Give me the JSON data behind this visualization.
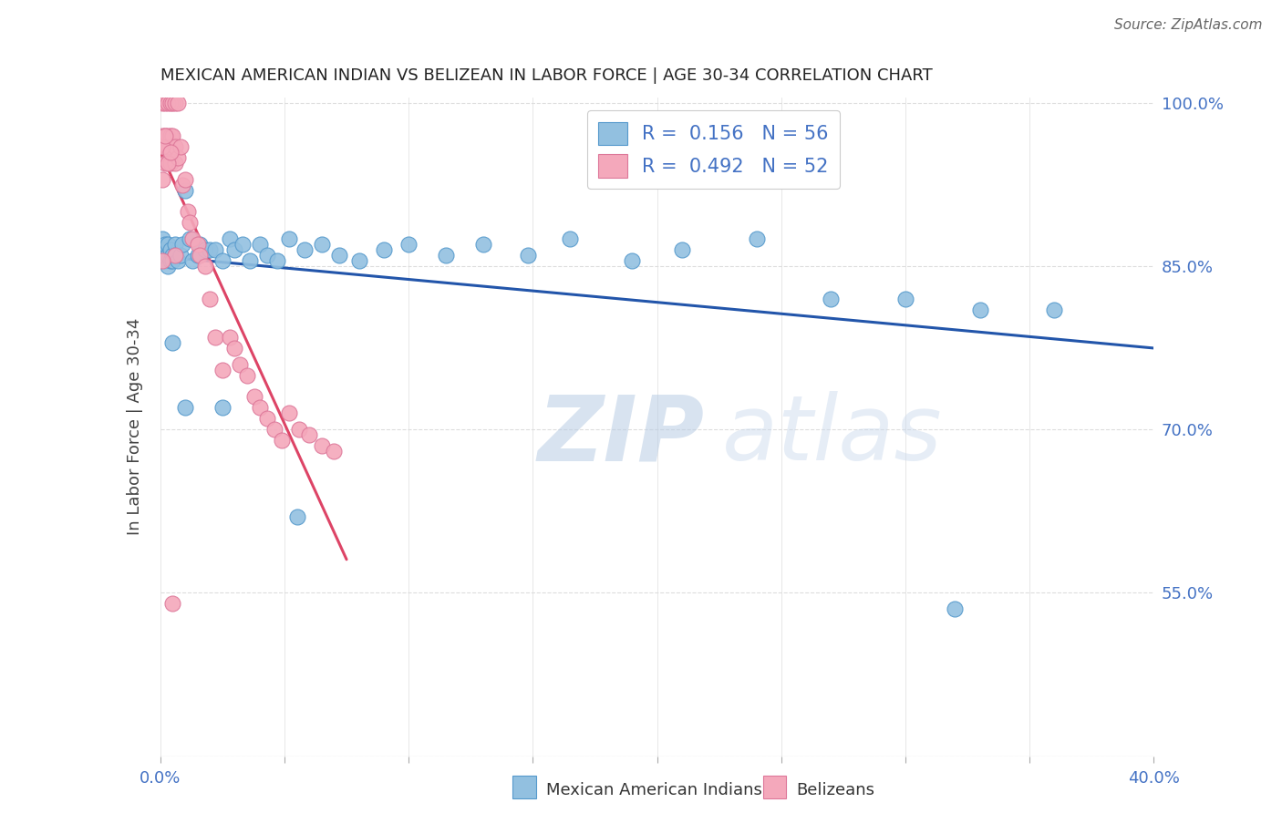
{
  "title": "MEXICAN AMERICAN INDIAN VS BELIZEAN IN LABOR FORCE | AGE 30-34 CORRELATION CHART",
  "source": "Source: ZipAtlas.com",
  "ylabel": "In Labor Force | Age 30-34",
  "xlim": [
    0.0,
    0.4
  ],
  "ylim": [
    0.4,
    1.005
  ],
  "xticks": [
    0.0,
    0.05,
    0.1,
    0.15,
    0.2,
    0.25,
    0.3,
    0.35,
    0.4
  ],
  "yticks": [
    0.4,
    0.55,
    0.7,
    0.85,
    1.0
  ],
  "legend_blue_label": "R =  0.156   N = 56",
  "legend_pink_label": "R =  0.492   N = 52",
  "blue_color": "#92c0e0",
  "pink_color": "#f4a8bb",
  "trend_blue_color": "#2255aa",
  "trend_pink_color": "#dd4466",
  "blue_x": [
    0.001,
    0.001,
    0.002,
    0.002,
    0.002,
    0.003,
    0.003,
    0.003,
    0.004,
    0.004,
    0.005,
    0.005,
    0.006,
    0.006,
    0.007,
    0.008,
    0.009,
    0.01,
    0.012,
    0.013,
    0.015,
    0.016,
    0.018,
    0.02,
    0.022,
    0.025,
    0.028,
    0.03,
    0.033,
    0.036,
    0.04,
    0.043,
    0.047,
    0.052,
    0.058,
    0.065,
    0.072,
    0.08,
    0.09,
    0.1,
    0.115,
    0.13,
    0.148,
    0.165,
    0.19,
    0.21,
    0.24,
    0.27,
    0.3,
    0.33,
    0.36,
    0.005,
    0.01,
    0.025,
    0.055,
    0.32
  ],
  "blue_y": [
    0.86,
    0.875,
    0.855,
    0.865,
    0.87,
    0.85,
    0.86,
    0.87,
    0.855,
    0.865,
    0.86,
    0.855,
    0.87,
    0.86,
    0.855,
    0.86,
    0.87,
    0.92,
    0.875,
    0.855,
    0.86,
    0.87,
    0.865,
    0.865,
    0.865,
    0.855,
    0.875,
    0.865,
    0.87,
    0.855,
    0.87,
    0.86,
    0.855,
    0.875,
    0.865,
    0.87,
    0.86,
    0.855,
    0.865,
    0.87,
    0.86,
    0.87,
    0.86,
    0.875,
    0.855,
    0.865,
    0.875,
    0.82,
    0.82,
    0.81,
    0.81,
    0.78,
    0.72,
    0.72,
    0.62,
    0.535
  ],
  "pink_x": [
    0.001,
    0.001,
    0.001,
    0.002,
    0.002,
    0.002,
    0.003,
    0.003,
    0.003,
    0.004,
    0.004,
    0.004,
    0.005,
    0.005,
    0.006,
    0.006,
    0.006,
    0.007,
    0.007,
    0.008,
    0.009,
    0.01,
    0.011,
    0.012,
    0.013,
    0.015,
    0.016,
    0.018,
    0.02,
    0.022,
    0.025,
    0.028,
    0.03,
    0.032,
    0.035,
    0.038,
    0.04,
    0.043,
    0.046,
    0.049,
    0.052,
    0.056,
    0.06,
    0.065,
    0.07,
    0.001,
    0.002,
    0.003,
    0.004,
    0.005,
    0.006,
    0.001
  ],
  "pink_y": [
    1.0,
    0.97,
    0.93,
    1.0,
    0.97,
    0.945,
    1.0,
    0.97,
    0.96,
    1.0,
    0.97,
    0.945,
    1.0,
    0.97,
    1.0,
    0.96,
    0.945,
    1.0,
    0.95,
    0.96,
    0.925,
    0.93,
    0.9,
    0.89,
    0.875,
    0.87,
    0.86,
    0.85,
    0.82,
    0.785,
    0.755,
    0.785,
    0.775,
    0.76,
    0.75,
    0.73,
    0.72,
    0.71,
    0.7,
    0.69,
    0.715,
    0.7,
    0.695,
    0.685,
    0.68,
    0.96,
    0.97,
    0.945,
    0.955,
    0.54,
    0.86,
    0.855
  ],
  "watermark_zip": "ZIP",
  "watermark_atlas": "atlas",
  "background_color": "#ffffff",
  "axis_color": "#4472c4",
  "grid_color": "#dddddd",
  "title_color": "#222222",
  "ylabel_color": "#444444",
  "legend_label_blue": "Mexican American Indians",
  "legend_label_pink": "Belizeans"
}
